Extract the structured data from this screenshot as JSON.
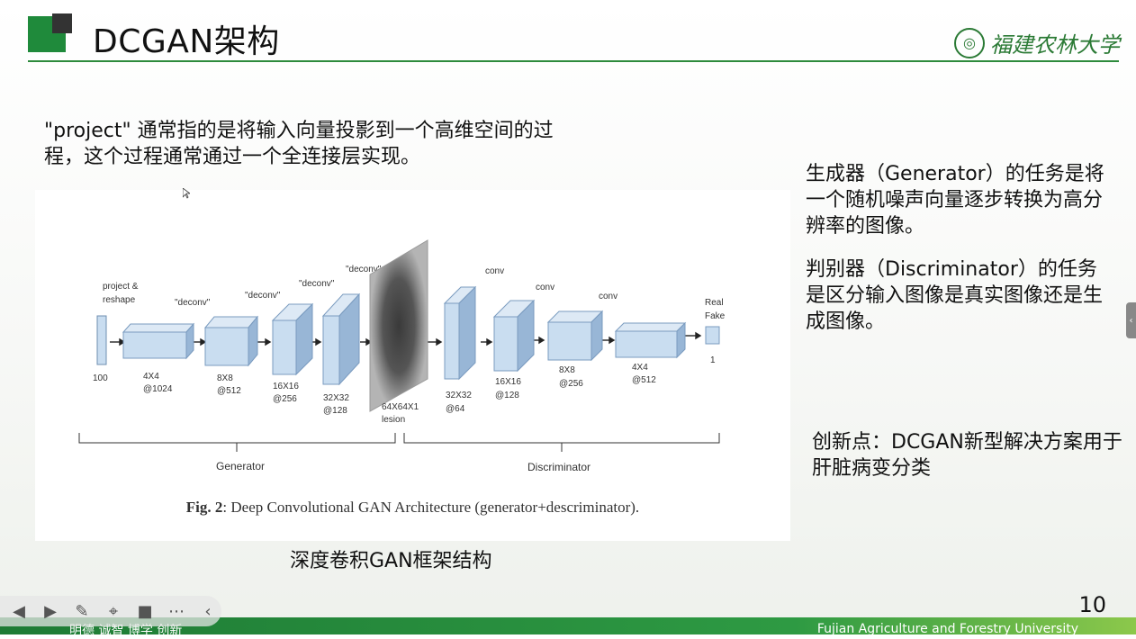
{
  "slide": {
    "title": "DCGAN架构",
    "university_logo": "福建农林大学",
    "page_number": "10",
    "project_note": "\"project\" 通常指的是将输入向量投影到一个高维空间的过程，这个过程通常通过一个全连接层实现。",
    "figure_caption_prefix": "Fig. 2",
    "figure_caption_text": ": Deep Convolutional GAN Architecture (generator+descriminator).",
    "subcaption": "深度卷积GAN框架结构",
    "generator_text": "生成器（Generator）的任务是将一个随机噪声向量逐步转换为高分辨率的图像。",
    "discriminator_text": "判别器（Discriminator）的任务是区分输入图像是真实图像还是生成图像。",
    "innovation_text": "创新点：DCGAN新型解决方案用于肝脏病变分类",
    "footer_motto": "明德 诚智 博学 创新",
    "footer_university": "Fujian Agriculture and Forestry University"
  },
  "diagram": {
    "labels": {
      "project_reshape_1": "project &",
      "project_reshape_2": "reshape",
      "deconv": "\"deconv\"",
      "conv": "conv",
      "real": "Real",
      "fake": "Fake",
      "generator": "Generator",
      "discriminator": "Discriminator"
    },
    "dims": {
      "g0": "100",
      "g1a": "4X4",
      "g1b": "@1024",
      "g2a": "8X8",
      "g2b": "@512",
      "g3a": "16X16",
      "g3b": "@256",
      "g4a": "32X32",
      "g4b": "@128",
      "img_a": "64X64X1",
      "img_b": "lesion",
      "d1a": "32X32",
      "d1b": "@64",
      "d2a": "16X16",
      "d2b": "@128",
      "d3a": "8X8",
      "d3b": "@256",
      "d4a": "4X4",
      "d4b": "@512",
      "out": "1"
    }
  },
  "toolbar": {
    "icons": [
      "prev-icon",
      "next-icon",
      "pen-icon",
      "pointer-icon",
      "camera-icon",
      "more-icon",
      "collapse-icon"
    ]
  },
  "colors": {
    "brand_green": "#1f8a3b",
    "block_fill": "#c9ddf0",
    "block_side": "#98b6d6"
  }
}
